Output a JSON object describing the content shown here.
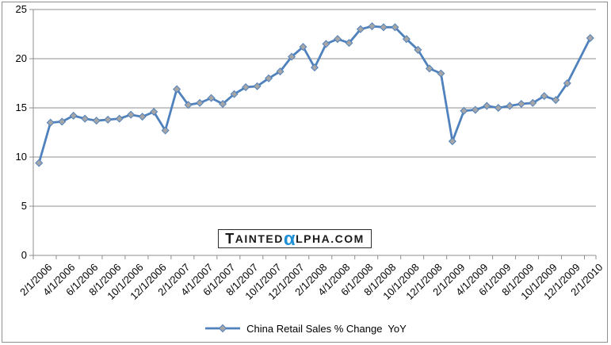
{
  "chart_data": {
    "type": "line",
    "title": "",
    "series": [
      {
        "name": "China Retail Sales % Change  YoY",
        "marker": "diamond",
        "x": [
          "2/1/2006",
          "3/1/2006",
          "4/1/2006",
          "5/1/2006",
          "6/1/2006",
          "7/1/2006",
          "8/1/2006",
          "9/1/2006",
          "10/1/2006",
          "11/1/2006",
          "12/1/2006",
          "1/1/2007",
          "2/1/2007",
          "3/1/2007",
          "4/1/2007",
          "5/1/2007",
          "6/1/2007",
          "7/1/2007",
          "8/1/2007",
          "9/1/2007",
          "10/1/2007",
          "11/1/2007",
          "12/1/2007",
          "1/1/2008",
          "2/1/2008",
          "3/1/2008",
          "4/1/2008",
          "5/1/2008",
          "6/1/2008",
          "7/1/2008",
          "8/1/2008",
          "9/1/2008",
          "10/1/2008",
          "11/1/2008",
          "12/1/2008",
          "1/1/2009",
          "2/1/2009",
          "3/1/2009",
          "4/1/2009",
          "5/1/2009",
          "6/1/2009",
          "7/1/2009",
          "8/1/2009",
          "9/1/2009",
          "10/1/2009",
          "11/1/2009",
          "12/1/2009",
          "2/1/2010"
        ],
        "values": [
          9.4,
          13.5,
          13.6,
          14.2,
          13.9,
          13.7,
          13.8,
          13.9,
          14.3,
          14.1,
          14.6,
          12.7,
          16.9,
          15.3,
          15.5,
          16.0,
          15.4,
          16.4,
          17.1,
          17.2,
          18.0,
          18.7,
          20.2,
          21.2,
          19.1,
          21.5,
          22.0,
          21.6,
          23.0,
          23.3,
          23.2,
          23.2,
          22.0,
          20.9,
          19.0,
          18.5,
          11.6,
          14.7,
          14.8,
          15.2,
          15.0,
          15.2,
          15.4,
          15.5,
          16.2,
          15.8,
          17.5,
          22.1
        ],
        "x_slots": [
          1,
          2,
          3,
          4,
          5,
          6,
          7,
          8,
          9,
          10,
          11,
          12,
          13,
          14,
          15,
          16,
          17,
          18,
          19,
          20,
          21,
          22,
          23,
          24,
          25,
          26,
          27,
          28,
          29,
          30,
          31,
          32,
          33,
          34,
          35,
          36,
          37,
          38,
          39,
          40,
          41,
          42,
          43,
          44,
          45,
          46,
          47,
          49
        ],
        "note_gap": "no data point for 1/1/2010; line connects 12/1/2009 directly to 2/1/2010"
      }
    ],
    "x_tick_labels": [
      "2/1/2006",
      "4/1/2006",
      "6/1/2006",
      "8/1/2006",
      "10/1/2006",
      "12/1/2006",
      "2/1/2007",
      "4/1/2007",
      "6/1/2007",
      "8/1/2007",
      "10/1/2007",
      "12/1/2007",
      "2/1/2008",
      "4/1/2008",
      "6/1/2008",
      "8/1/2008",
      "10/1/2008",
      "12/1/2008",
      "2/1/2009",
      "4/1/2009",
      "6/1/2009",
      "8/1/2009",
      "10/1/2009",
      "12/1/2009",
      "2/1/2010"
    ],
    "y_ticks": [
      0,
      5,
      10,
      15,
      20,
      25
    ],
    "xlabel": "",
    "ylabel": "",
    "ylim": [
      0,
      25
    ],
    "x_slot_count": 49,
    "grid": "horizontal-major",
    "legend_position": "bottom-center"
  },
  "legend": {
    "label": "China Retail Sales % Change  YoY"
  },
  "watermark": {
    "part_big": "T",
    "part_caps1": "AINTED",
    "alpha": "α",
    "part_caps2": "LPHA.COM"
  },
  "colors": {
    "line": "#4F81BD",
    "marker_fill": "#A6A6A6",
    "marker_stroke": "#4F81BD",
    "gridline": "#8F8F8F",
    "axis": "#8F8F8F",
    "tick": "#8F8F8F",
    "text": "#000000",
    "frame_border": "#8F8F8F",
    "watermark_alpha": "#1E8FD5",
    "watermark_text": "#1A1A1A",
    "background": "#FFFFFF"
  }
}
